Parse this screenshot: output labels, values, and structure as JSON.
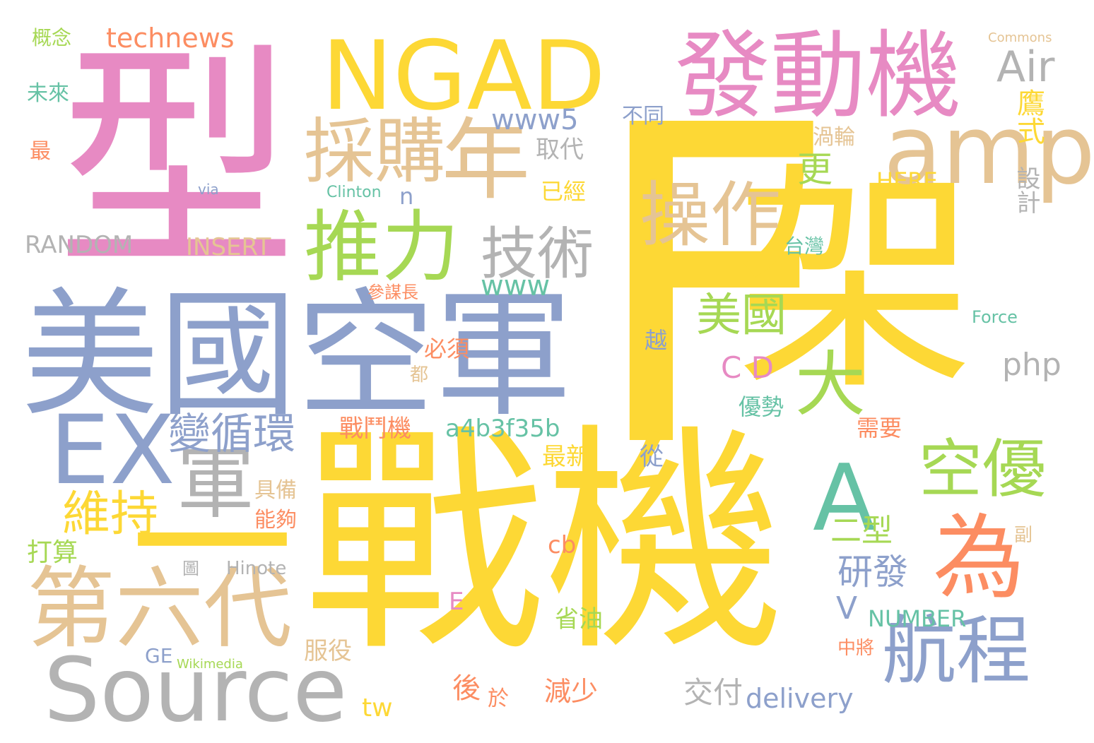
{
  "words": {
    "F": "F",
    "jia": "架",
    "zhanji": "戰機",
    "xing": "型",
    "meiguokongjun": "美國空軍",
    "NGAD": "NGAD",
    "fadongji": "發動機",
    "source": "Source",
    "diliudai": "第六代",
    "caigou": "採購",
    "nian": "年",
    "amp": "amp",
    "tuili": "推力",
    "caozuo": "操作",
    "jishu": "技術",
    "EX": "EX",
    "A": "A",
    "kongyou": "空優",
    "wei": "為",
    "hangcheng": "航程",
    "da": "大",
    "jun": "軍",
    "weichi": "維持",
    "bianxunhuan": "變循環",
    "yi": "一",
    "meiguo": "美國",
    "Air": "Air",
    "technews": "technews",
    "www5": "www5",
    "geng": "更",
    "yingshi": "鷹式",
    "qudai": "取代",
    "butong": "不同",
    "wolun": "渦輪",
    "RANDOM": "RANDOM",
    "INSERT": "INSERT",
    "www": "www",
    "CD": "C D",
    "php": "php",
    "a4b3f35b": "a4b3f35b",
    "zhandouji": "戰鬥機",
    "zuixin": "最新",
    "ertype": "二型",
    "yanfa": "研發",
    "V": "V",
    "cb": "cb",
    "delivery": "delivery",
    "jiaofu": "交付",
    "jianshao": "減少",
    "hou": "後",
    "tw": "tw",
    "NUMBER": "NUMBER",
    "Hinote": "Hinote",
    "GE": "GE",
    "Wikimedia": "Wikimedia",
    "dasuan": "打算",
    "gainian": "概念",
    "weilai": "未來",
    "zui": "最",
    "Clinton": "Clinton",
    "via": "via",
    "n": "n",
    "yijing": "已經",
    "sheji": "設計",
    "HERE": "HERE",
    "taiwan": "台灣",
    "canmouzhang": "參謀長",
    "bixu": "必須",
    "dou": "都",
    "yue": "越",
    "youshi": "優勢",
    "xuyao": "需要",
    "cong": "從",
    "jubei": "具備",
    "nenggou": "能夠",
    "tu": "圖",
    "fu": "副",
    "E": "E",
    "shengyou": "省油",
    "fuyi": "服役",
    "yu": "於",
    "zhongjiang": "中將",
    "Force": "Force",
    "Commons": "Commons"
  }
}
